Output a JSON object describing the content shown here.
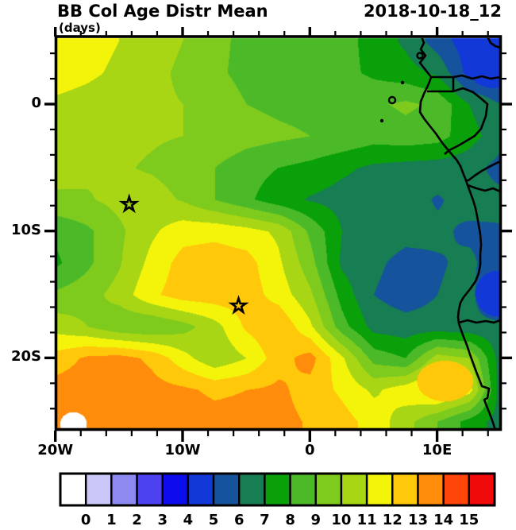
{
  "header": {
    "title": "BB Col Age Distr Mean",
    "units": "(days)",
    "date": "2018-10-18_12"
  },
  "axes": {
    "x_ticks": [
      {
        "label": "20W",
        "lon": -20
      },
      {
        "label": "10W",
        "lon": -10
      },
      {
        "label": "0",
        "lon": 0
      },
      {
        "label": "10E",
        "lon": 10
      }
    ],
    "y_ticks": [
      {
        "label": "0",
        "lat": 0
      },
      {
        "label": "10S",
        "lat": -10
      },
      {
        "label": "20S",
        "lat": -20
      }
    ]
  },
  "colorbar": {
    "labels": [
      "0",
      "1",
      "2",
      "3",
      "4",
      "5",
      "6",
      "7",
      "8",
      "9",
      "10",
      "11",
      "12",
      "13",
      "14",
      "15"
    ]
  },
  "chart_data": {
    "type": "heatmap",
    "title": "BB Col Age Distr Mean",
    "units": "(days)",
    "timestamp": "2018-10-18_12",
    "xlabel_ticks": [
      "20W",
      "10W",
      "0",
      "10E"
    ],
    "ylabel_ticks": [
      "0",
      "10S",
      "20S"
    ],
    "lon_range": [
      -20,
      15
    ],
    "lat_range": [
      5.2,
      -25.6
    ],
    "levels": [
      0,
      1,
      2,
      3,
      4,
      5,
      6,
      7,
      8,
      9,
      10,
      11,
      12,
      13,
      14,
      15
    ],
    "palette": [
      "#ffffff",
      "#cac6f7",
      "#8f8af2",
      "#4d42ef",
      "#0d0cec",
      "#1238d8",
      "#15549c",
      "#177d52",
      "#0aa00a",
      "#4cba28",
      "#7ecb1e",
      "#a8d614",
      "#f4f40b",
      "#ffc80a",
      "#ff8c0a",
      "#ff460a",
      "#f00a0a"
    ],
    "lon_axis": [
      -20,
      -17.5,
      -15,
      -12.5,
      -10,
      -7.5,
      -5,
      -2.5,
      0,
      2.5,
      5,
      7.5,
      10,
      12.5,
      15
    ],
    "lat_axis": [
      5,
      2.5,
      0,
      -2.5,
      -5,
      -7.5,
      -10,
      -12.5,
      -15,
      -17.5,
      -20,
      -22.5,
      -25
    ],
    "values_days": [
      [
        11.6,
        11.4,
        11.0,
        10.5,
        10.0,
        9.3,
        8.7,
        8.6,
        8.6,
        8.4,
        7.6,
        6.8,
        5.5,
        4.4,
        4.2
      ],
      [
        11.5,
        11.2,
        10.8,
        10.3,
        9.8,
        9.2,
        8.7,
        8.6,
        8.5,
        8.3,
        7.8,
        7.4,
        6.8,
        4.6,
        4.4
      ],
      [
        10.8,
        10.6,
        10.4,
        10.2,
        10.0,
        9.6,
        9.0,
        8.8,
        8.7,
        8.8,
        8.8,
        9.2,
        8.8,
        7.0,
        6.0
      ],
      [
        10.6,
        10.4,
        10.2,
        10.1,
        10.0,
        9.7,
        9.4,
        9.2,
        9.0,
        8.8,
        8.4,
        8.6,
        8.4,
        7.4,
        6.4
      ],
      [
        10.4,
        10.2,
        10.1,
        9.9,
        9.6,
        9.0,
        8.4,
        8.0,
        7.7,
        7.2,
        6.8,
        6.6,
        6.5,
        6.4,
        5.6
      ],
      [
        9.8,
        9.9,
        10.3,
        10.4,
        9.9,
        9.0,
        8.2,
        7.4,
        6.9,
        6.6,
        6.5,
        6.4,
        5.9,
        6.4,
        6.3
      ],
      [
        8.2,
        8.8,
        9.8,
        10.8,
        11.6,
        11.7,
        11.4,
        10.8,
        8.8,
        7.0,
        6.5,
        6.3,
        6.2,
        5.8,
        5.9
      ],
      [
        7.8,
        8.8,
        9.9,
        11.3,
        12.4,
        12.6,
        12.4,
        11.2,
        9.4,
        6.8,
        6.2,
        5.7,
        5.9,
        6.2,
        5.4
      ],
      [
        9.2,
        9.6,
        10.4,
        11.8,
        12.5,
        12.6,
        12.5,
        11.6,
        10.2,
        7.6,
        6.0,
        5.5,
        6.0,
        6.3,
        4.6
      ],
      [
        10.6,
        10.0,
        9.2,
        9.0,
        9.6,
        10.6,
        12.2,
        12.9,
        11.2,
        8.4,
        6.6,
        6.4,
        6.4,
        6.2,
        6.3
      ],
      [
        12.4,
        13.2,
        13.4,
        12.8,
        11.4,
        10.2,
        11.0,
        12.6,
        13.4,
        11.2,
        8.6,
        8.0,
        10.5,
        10.0,
        6.4
      ],
      [
        13.5,
        13.6,
        13.5,
        13.4,
        13.2,
        12.8,
        13.0,
        13.2,
        12.6,
        11.8,
        10.8,
        11.6,
        12.6,
        11.5,
        6.4
      ],
      [
        13.6,
        13.7,
        13.7,
        13.6,
        13.5,
        13.4,
        13.4,
        13.3,
        12.9,
        12.4,
        11.6,
        10.4,
        9.0,
        7.6,
        6.5
      ]
    ],
    "markers": [
      {
        "name": "star",
        "lon": -14.2,
        "lat": -7.9
      },
      {
        "name": "star",
        "lon": -5.6,
        "lat": -15.9
      }
    ],
    "features": [
      {
        "name": "white-spot",
        "lon": -18.6,
        "lat": -25.2,
        "rlon": 1.05,
        "rlat": 0.95,
        "value": -0.5
      },
      {
        "name": "edge-blue-patch",
        "lon": 14.7,
        "lat": -14.9,
        "rlon": 1.7,
        "rlat": 1.8,
        "value": 4.5
      },
      {
        "name": "corner-blue-patch",
        "lon": 14.4,
        "lat": 3.3,
        "rlon": 2.2,
        "rlat": 2.0,
        "value": 4.3
      },
      {
        "name": "amber-blob-south",
        "lon": 10.6,
        "lat": -21.8,
        "rlon": 2.2,
        "rlat": 1.6,
        "value": 12.5
      }
    ],
    "legend_position": "bottom",
    "grid": "off"
  }
}
